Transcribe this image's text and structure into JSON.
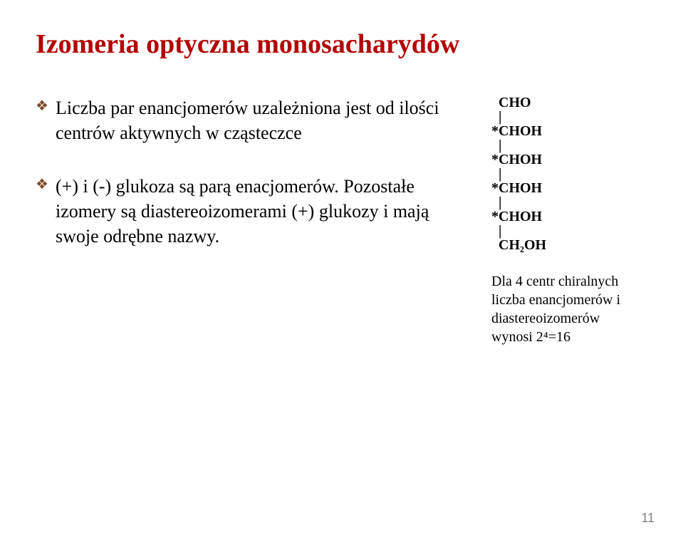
{
  "title": "Izomeria optyczna monosacharydów",
  "bullets": [
    "Liczba par enancjomerów uzależniona jest od ilości centrów aktywnych w cząsteczce",
    "(+) i (-) glukoza są parą enacjomerów. Pozostałe izomery są diastereoizomerami (+) glukozy i mają swoje odrębne nazwy."
  ],
  "structure_lines": [
    "  CHO",
    "  |",
    "*CHOH",
    "  |",
    "*CHOH",
    "  |",
    "*CHOH",
    "  |",
    "*CHOH",
    "  |",
    "  CH₂OH"
  ],
  "caption_lines": [
    "Dla 4 centr chiralnych",
    "liczba enancjomerów i",
    "diastereoizomerów"
  ],
  "caption_last_prefix": "wynosi  ",
  "caption_last_formula": "2⁴=16",
  "page_number": "11",
  "colors": {
    "title": "#b30000",
    "bullet": "#7a4a28",
    "text": "#000000",
    "page_number": "#808080",
    "background": "#ffffff"
  },
  "fontsizes": {
    "title": 38,
    "body": 26,
    "structure": 20,
    "caption": 20,
    "page_number": 18
  }
}
